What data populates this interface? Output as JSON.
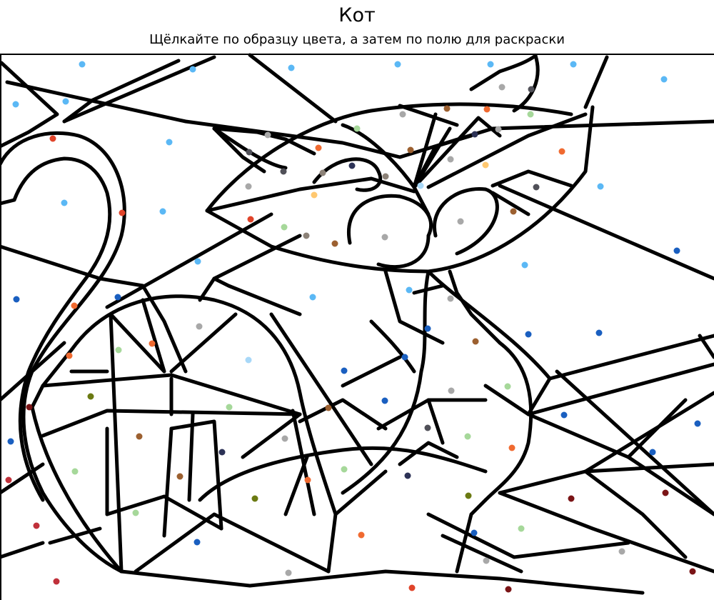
{
  "header": {
    "title": "Кот",
    "subtitle": "Щёлкайте по образцу цвета, а затем по полю для раскраски"
  },
  "palette": {
    "light_blue": "#3daeee",
    "sky": "#5bb8f5",
    "blue": "#1a5fc0",
    "navy": "#2c3256",
    "red": "#e0442a",
    "orange": "#f06a30",
    "brown": "#9c6030",
    "amber": "#ffc870",
    "gray": "#a8a8a8",
    "taupe": "#8c8278",
    "dark_gray": "#505058",
    "light_green": "#a6d89a",
    "olive": "#6b7a12",
    "maroon": "#7a1416",
    "crimson": "#c0303a",
    "pale_blue": "#a8d8f8"
  }
}
